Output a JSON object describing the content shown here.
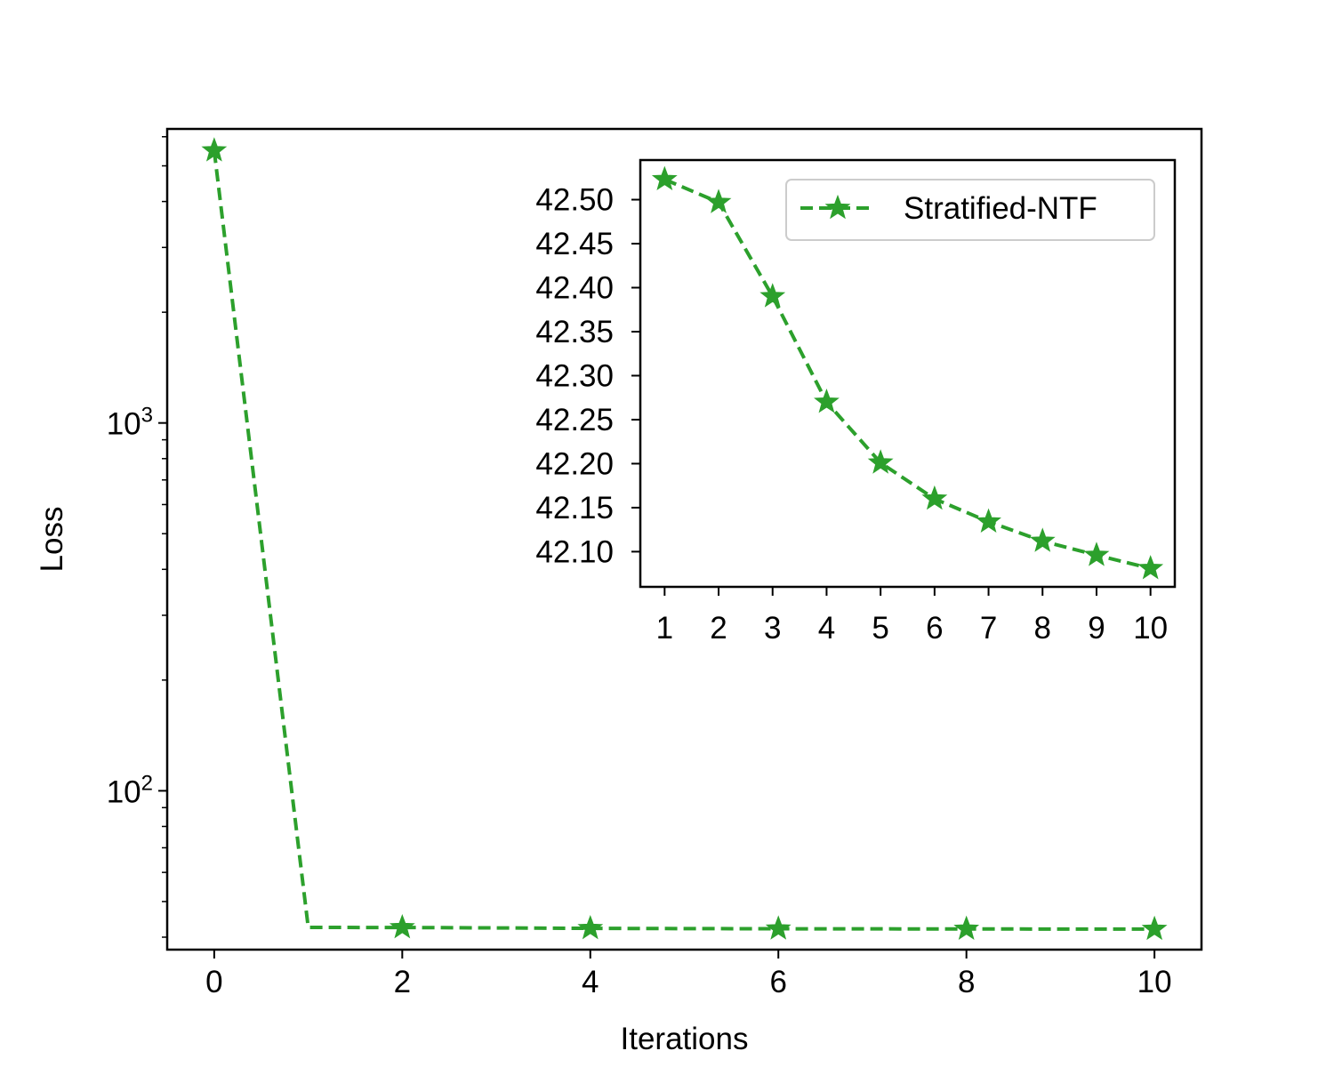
{
  "chart_data": [
    {
      "panel": "main",
      "type": "line",
      "xlabel": "Iterations",
      "ylabel": "Loss",
      "yscale": "log",
      "xlim": [
        -0.5,
        10.5
      ],
      "ylim": [
        37,
        6300
      ],
      "x_ticks": [
        0,
        2,
        4,
        6,
        8,
        10
      ],
      "y_ticks": [
        {
          "value": 100,
          "base": "10",
          "exp": "2"
        },
        {
          "value": 1000,
          "base": "10",
          "exp": "3"
        }
      ],
      "series": [
        {
          "name": "Stratified-NTF",
          "color": "#2ca02c",
          "line_style": "dashed",
          "marker": "star",
          "x": [
            0,
            1,
            2,
            3,
            4,
            5,
            6,
            7,
            8,
            9,
            10
          ],
          "y": [
            5500,
            42.52,
            42.5,
            42.39,
            42.27,
            42.2,
            42.16,
            42.13,
            42.11,
            42.09,
            42.08
          ],
          "marker_every": 2
        }
      ],
      "legend": "none",
      "grid": false
    },
    {
      "panel": "inset",
      "type": "line",
      "xlabel": "",
      "ylabel": "",
      "xlim": [
        0.55,
        10.45
      ],
      "ylim": [
        42.06,
        42.545
      ],
      "x_ticks": [
        "1",
        "2",
        "3",
        "4",
        "5",
        "6",
        "7",
        "8",
        "9",
        "10"
      ],
      "y_ticks": [
        "42.10",
        "42.15",
        "42.20",
        "42.25",
        "42.30",
        "42.35",
        "42.40",
        "42.45",
        "42.50"
      ],
      "series": [
        {
          "name": "Stratified-NTF",
          "color": "#2ca02c",
          "line_style": "dashed",
          "marker": "star",
          "x": [
            1,
            2,
            3,
            4,
            5,
            6,
            7,
            8,
            9,
            10
          ],
          "y": [
            42.523,
            42.497,
            42.39,
            42.27,
            42.201,
            42.16,
            42.134,
            42.112,
            42.096,
            42.081
          ]
        }
      ],
      "legend": "top-right",
      "grid": false
    }
  ]
}
